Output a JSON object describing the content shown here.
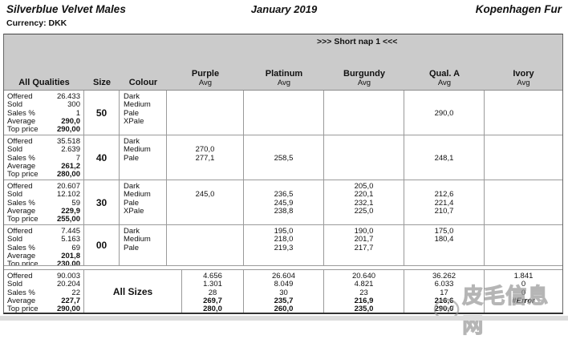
{
  "page": {
    "title": "Silverblue Velvet Males",
    "date": "January 2019",
    "house": "Kopenhagen Fur",
    "currency_label": "Currency: DKK",
    "section_label": ">>> Short nap 1 <<<"
  },
  "table": {
    "stats_header": "All Qualities",
    "size_header": "Size",
    "colour_header": "Colour",
    "avg_label": "Avg",
    "columns": [
      {
        "key": "purple",
        "label": "Purple"
      },
      {
        "key": "platinum",
        "label": "Platinum"
      },
      {
        "key": "burgundy",
        "label": "Burgundy"
      },
      {
        "key": "qual_a",
        "label": "Qual. A"
      },
      {
        "key": "ivory",
        "label": "Ivory"
      }
    ],
    "stat_labels": [
      "Offered",
      "Sold",
      "Sales %",
      "Average",
      "Top price"
    ],
    "blocks": [
      {
        "size": "50",
        "stats": [
          "26.433",
          "300",
          "1",
          "290,0",
          "290,00"
        ],
        "colours": [
          "Dark",
          "Medium",
          "Pale",
          "XPale"
        ],
        "values": {
          "purple": [
            "",
            "",
            "",
            ""
          ],
          "platinum": [
            "",
            "",
            "",
            ""
          ],
          "burgundy": [
            "",
            "",
            "",
            ""
          ],
          "qual_a": [
            "",
            "",
            "290,0",
            ""
          ],
          "ivory": [
            "",
            "",
            "",
            ""
          ]
        }
      },
      {
        "size": "40",
        "stats": [
          "35.518",
          "2.639",
          "7",
          "261,2",
          "280,00"
        ],
        "colours": [
          "Dark",
          "Medium",
          "Pale"
        ],
        "values": {
          "purple": [
            "",
            "270,0",
            "277,1"
          ],
          "platinum": [
            "",
            "",
            "258,5"
          ],
          "burgundy": [
            "",
            "",
            ""
          ],
          "qual_a": [
            "",
            "",
            "248,1"
          ],
          "ivory": [
            "",
            "",
            ""
          ]
        }
      },
      {
        "size": "30",
        "stats": [
          "20.607",
          "12.102",
          "59",
          "229,9",
          "255,00"
        ],
        "colours": [
          "Dark",
          "Medium",
          "Pale",
          "XPale"
        ],
        "values": {
          "purple": [
            "",
            "245,0",
            "",
            ""
          ],
          "platinum": [
            "",
            "236,5",
            "245,9",
            "238,8"
          ],
          "burgundy": [
            "205,0",
            "220,1",
            "232,1",
            "225,0"
          ],
          "qual_a": [
            "",
            "212,6",
            "221,4",
            "210,7"
          ],
          "ivory": [
            "",
            "",
            "",
            ""
          ]
        }
      },
      {
        "size": "00",
        "stats": [
          "7.445",
          "5.163",
          "69",
          "201,8",
          "230,00"
        ],
        "colours": [
          "Dark",
          "Medium",
          "Pale"
        ],
        "values": {
          "purple": [
            "",
            "",
            ""
          ],
          "platinum": [
            "195,0",
            "218,0",
            "219,3"
          ],
          "burgundy": [
            "190,0",
            "201,7",
            "217,7"
          ],
          "qual_a": [
            "175,0",
            "180,4",
            ""
          ],
          "ivory": [
            "",
            "",
            ""
          ]
        }
      }
    ],
    "totals": {
      "size": "All Sizes",
      "stats": [
        "90.003",
        "20.204",
        "22",
        "227,7",
        "290,00"
      ],
      "values": {
        "purple": [
          "4.656",
          "1.301",
          "28",
          "269,7",
          "280,0"
        ],
        "platinum": [
          "26.604",
          "8.049",
          "30",
          "235,7",
          "260,0"
        ],
        "burgundy": [
          "20.640",
          "4.821",
          "23",
          "216,9",
          "235,0"
        ],
        "qual_a": [
          "36.262",
          "6.033",
          "17",
          "216,6",
          "290,0"
        ],
        "ivory": [
          "1.841",
          "0",
          "0",
          "#Error",
          ""
        ]
      }
    }
  },
  "watermark": {
    "text": "皮毛信息网"
  },
  "colors": {
    "header_band": "#cbcbcb",
    "grid_line": "#9a9a9a"
  }
}
